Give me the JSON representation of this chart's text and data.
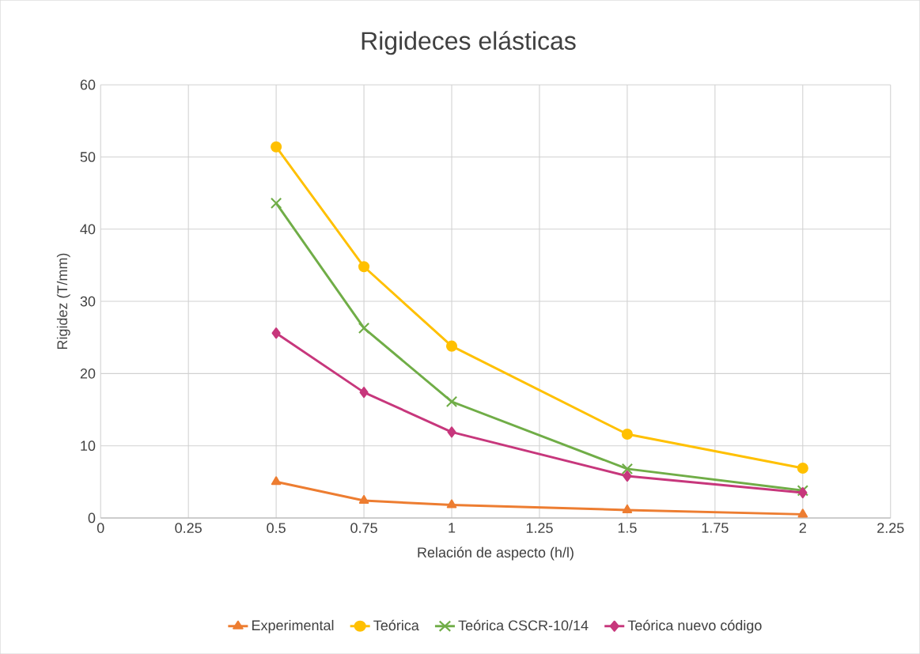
{
  "chart_data": {
    "type": "line",
    "title": "Rigideces elásticas",
    "xlabel": "Relación de aspecto (h/l)",
    "ylabel": "Rigidez (T/mm)",
    "x": [
      0.5,
      0.75,
      1,
      1.5,
      2
    ],
    "series": [
      {
        "name": "Experimental",
        "color": "#ed7d31",
        "marker": "triangle",
        "values": [
          5.0,
          2.4,
          1.8,
          1.1,
          0.5
        ]
      },
      {
        "name": "Teórica",
        "color": "#ffc000",
        "marker": "circle",
        "values": [
          51.4,
          34.8,
          23.8,
          11.6,
          6.9
        ]
      },
      {
        "name": "Teórica CSCR-10/14",
        "color": "#70ad47",
        "marker": "cross",
        "values": [
          43.6,
          26.3,
          16.1,
          6.8,
          3.8
        ]
      },
      {
        "name": "Teórica nuevo código",
        "color": "#c7377c",
        "marker": "diamond",
        "values": [
          25.6,
          17.4,
          11.9,
          5.8,
          3.5
        ]
      }
    ],
    "xlim": [
      0,
      2.25
    ],
    "xticks": [
      0,
      0.25,
      0.5,
      0.75,
      1,
      1.25,
      1.5,
      1.75,
      2,
      2.25
    ],
    "ylim": [
      0,
      60
    ],
    "yticks": [
      0,
      10,
      20,
      30,
      40,
      50,
      60
    ],
    "grid": true,
    "legend": "bottom",
    "line_style": "solid"
  }
}
